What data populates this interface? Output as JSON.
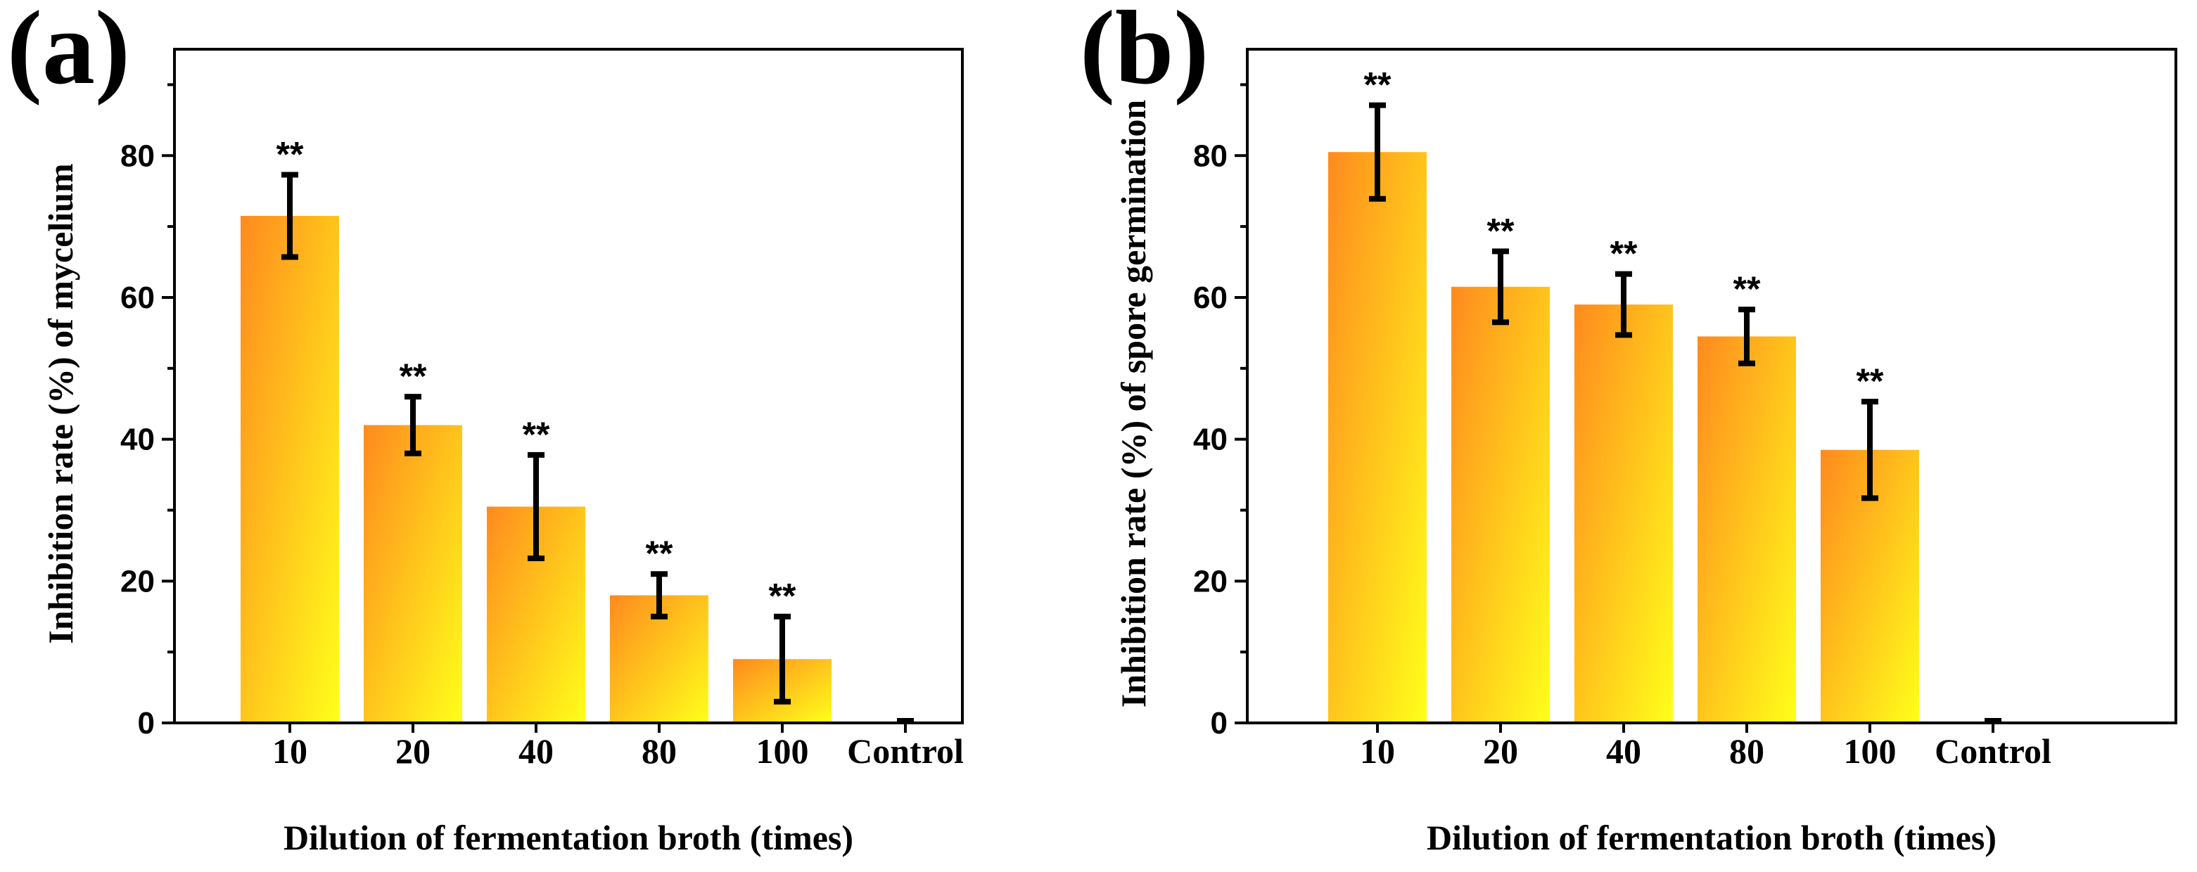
{
  "chart_data": [
    {
      "type": "bar",
      "panel_label": "(a)",
      "categories": [
        "10",
        "20",
        "40",
        "80",
        "100",
        "Control"
      ],
      "values": [
        71.5,
        42,
        30.5,
        18,
        9,
        0
      ],
      "errors": [
        5.8,
        4,
        7.3,
        3,
        6,
        0
      ],
      "significance": [
        "**",
        "**",
        "**",
        "**",
        "**",
        ""
      ],
      "xlabel": "Dilution of fermentation broth (times)",
      "ylabel": "Inhibition rate (%) of mycelium",
      "ylim": [
        0,
        95
      ],
      "yticks": [
        0,
        20,
        40,
        60,
        80
      ],
      "ytick_labels": [
        "0",
        "20",
        "40",
        "60",
        "80"
      ],
      "grid": false
    },
    {
      "type": "bar",
      "panel_label": "(b)",
      "categories": [
        "10",
        "20",
        "40",
        "80",
        "100",
        "Control"
      ],
      "values": [
        80.5,
        61.5,
        59,
        54.5,
        38.5,
        0
      ],
      "errors": [
        6.6,
        5,
        4.3,
        3.8,
        6.8,
        0
      ],
      "significance": [
        "**",
        "**",
        "**",
        "**",
        "**",
        ""
      ],
      "xlabel": "Dilution of fermentation broth (times)",
      "ylabel": "Inhibition rate (%) of spore germination",
      "ylim": [
        0,
        95
      ],
      "yticks": [
        0,
        20,
        40,
        60,
        80
      ],
      "ytick_labels": [
        "0",
        "20",
        "40",
        "60",
        "80"
      ],
      "grid": false
    }
  ],
  "colors": {
    "bar_gradient_start": "#ff8a1e",
    "bar_gradient_end": "#ffff1a",
    "axis": "#000000"
  }
}
